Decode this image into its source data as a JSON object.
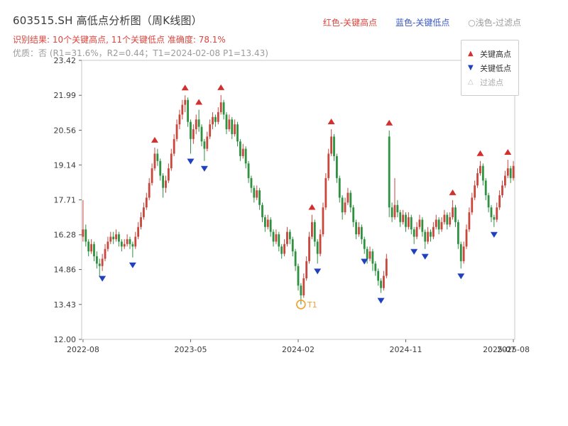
{
  "header": {
    "title": "603515.SH 高低点分析图（周K线图）",
    "result_line": "识别结果: 10个关键高点, 11个关键低点  准确度: 78.1%",
    "quality_line": "优质：否 (R1=31.6%，R2=0.44；T1=2024-02-08 P1=13.43)",
    "inline_legend": {
      "items": [
        {
          "label": "红色-关键高点",
          "color": "#d9453d"
        },
        {
          "label": "蓝色-关键低点",
          "color": "#3a57c4"
        },
        {
          "label": "○浅色-过滤点",
          "color": "#9b9b9b"
        }
      ]
    }
  },
  "legend_box": {
    "items": [
      {
        "glyph": "▲",
        "label": "关键高点",
        "color": "#d32f2f",
        "label_color": "#333333"
      },
      {
        "glyph": "▼",
        "label": "关键低点",
        "color": "#2040c0",
        "label_color": "#333333"
      },
      {
        "glyph": "△",
        "label": "过滤点",
        "color": "#bbbbbb",
        "label_color": "#aaaaaa"
      }
    ]
  },
  "colors": {
    "accent_red": "#d9453d",
    "accent_blue": "#3a57c4",
    "muted": "#9b9b9b",
    "title_text": "#3b3b3b",
    "tick_text": "#3c3c3c",
    "frame": "#c9c9c9",
    "up": "#c9463c",
    "down": "#2e9140",
    "high_marker": "#d32f2f",
    "low_marker": "#2040c0",
    "t1": "#f0a029"
  },
  "chart_data": {
    "type": "candlestick",
    "symbol": "603515.SH",
    "period": "weekly",
    "title": "603515.SH 高低点分析图（周K线图）",
    "grid": false,
    "legend_position": "upper right",
    "ylim": [
      12.0,
      23.42
    ],
    "y_ticks": [
      12.0,
      13.43,
      14.86,
      16.28,
      17.71,
      19.14,
      20.56,
      21.99,
      23.42
    ],
    "x_tick_labels": [
      "2022-08",
      "2023-05",
      "2024-02",
      "2024-11",
      "2025-08"
    ],
    "x_tick_weeks": [
      0,
      39,
      78,
      117,
      156
    ],
    "overlap_x_label": "2025-07",
    "stats": {
      "num_key_highs": 10,
      "num_key_lows": 11,
      "accuracy": "78.1%",
      "quality": "否",
      "R1": "31.6%",
      "R2": "0.44",
      "T1_date": "2024-02-08",
      "P1": "13.43"
    },
    "key_highs": [
      26,
      37,
      42,
      50,
      83,
      90,
      111,
      134,
      144,
      154
    ],
    "key_lows": [
      7,
      18,
      39,
      44,
      85,
      102,
      108,
      120,
      124,
      137,
      149
    ],
    "t1": {
      "index": 79,
      "label": "T1",
      "price": 13.43,
      "date": "2024-02-08"
    },
    "candles": [
      [
        16.2,
        17.7,
        16.0,
        16.5
      ],
      [
        16.5,
        16.7,
        15.8,
        16.0
      ],
      [
        16.0,
        16.1,
        15.4,
        15.6
      ],
      [
        15.6,
        16.1,
        15.5,
        15.9
      ],
      [
        15.9,
        16.0,
        15.2,
        15.4
      ],
      [
        15.4,
        15.6,
        14.9,
        15.1
      ],
      [
        15.1,
        15.3,
        14.55,
        15.0
      ],
      [
        15.0,
        15.5,
        14.8,
        15.3
      ],
      [
        15.3,
        15.9,
        15.2,
        15.7
      ],
      [
        15.7,
        16.2,
        15.6,
        16.0
      ],
      [
        16.0,
        16.4,
        15.9,
        16.2
      ],
      [
        16.2,
        16.4,
        15.9,
        16.1
      ],
      [
        16.1,
        16.5,
        16.0,
        16.3
      ],
      [
        16.3,
        16.4,
        15.8,
        16.0
      ],
      [
        16.0,
        16.1,
        15.6,
        15.8
      ],
      [
        15.8,
        16.1,
        15.7,
        15.9
      ],
      [
        15.9,
        16.3,
        15.8,
        16.1
      ],
      [
        16.1,
        16.2,
        15.7,
        15.9
      ],
      [
        15.9,
        16.0,
        15.35,
        15.8
      ],
      [
        15.8,
        16.4,
        15.7,
        16.2
      ],
      [
        16.2,
        16.8,
        16.1,
        16.6
      ],
      [
        16.6,
        17.2,
        16.5,
        17.0
      ],
      [
        17.0,
        17.6,
        16.9,
        17.4
      ],
      [
        17.4,
        18.0,
        17.3,
        17.8
      ],
      [
        17.8,
        18.6,
        17.7,
        18.4
      ],
      [
        18.4,
        19.2,
        18.3,
        19.0
      ],
      [
        19.0,
        19.85,
        18.9,
        19.6
      ],
      [
        19.6,
        19.8,
        19.1,
        19.3
      ],
      [
        19.3,
        19.4,
        18.5,
        18.7
      ],
      [
        18.7,
        18.8,
        17.8,
        18.2
      ],
      [
        18.2,
        18.7,
        18.0,
        18.5
      ],
      [
        18.5,
        19.2,
        18.4,
        19.0
      ],
      [
        19.0,
        19.8,
        18.9,
        19.6
      ],
      [
        19.6,
        20.4,
        19.5,
        20.2
      ],
      [
        20.2,
        21.0,
        20.1,
        20.8
      ],
      [
        20.8,
        21.4,
        20.6,
        21.2
      ],
      [
        21.2,
        21.8,
        21.0,
        21.6
      ],
      [
        21.6,
        21.99,
        21.3,
        21.8
      ],
      [
        21.8,
        21.9,
        20.7,
        20.9
      ],
      [
        20.9,
        21.0,
        19.6,
        20.2
      ],
      [
        20.2,
        20.8,
        20.0,
        20.6
      ],
      [
        20.6,
        21.2,
        20.4,
        21.0
      ],
      [
        21.0,
        21.4,
        20.5,
        20.7
      ],
      [
        20.7,
        20.8,
        19.9,
        20.1
      ],
      [
        20.1,
        20.2,
        19.3,
        19.8
      ],
      [
        19.8,
        20.5,
        19.7,
        20.3
      ],
      [
        20.3,
        21.0,
        20.2,
        20.8
      ],
      [
        20.8,
        21.3,
        20.6,
        21.1
      ],
      [
        21.1,
        21.2,
        20.7,
        20.9
      ],
      [
        20.9,
        21.5,
        20.8,
        21.3
      ],
      [
        21.3,
        22.0,
        21.2,
        21.7
      ],
      [
        21.7,
        21.8,
        21.0,
        21.2
      ],
      [
        21.2,
        21.3,
        20.4,
        20.6
      ],
      [
        20.6,
        21.2,
        20.5,
        21.0
      ],
      [
        21.0,
        21.1,
        20.2,
        20.4
      ],
      [
        20.4,
        21.0,
        20.3,
        20.8
      ],
      [
        20.8,
        20.9,
        19.9,
        20.1
      ],
      [
        20.1,
        20.2,
        19.3,
        19.5
      ],
      [
        19.5,
        20.0,
        19.4,
        19.8
      ],
      [
        19.8,
        19.9,
        19.0,
        19.2
      ],
      [
        19.2,
        19.3,
        18.4,
        18.6
      ],
      [
        18.6,
        18.7,
        18.0,
        18.2
      ],
      [
        18.2,
        18.3,
        17.6,
        17.8
      ],
      [
        17.8,
        18.3,
        17.7,
        18.1
      ],
      [
        18.1,
        18.2,
        17.3,
        17.5
      ],
      [
        17.5,
        17.6,
        16.8,
        17.0
      ],
      [
        17.0,
        17.1,
        16.4,
        16.6
      ],
      [
        16.6,
        17.1,
        16.5,
        16.9
      ],
      [
        16.9,
        17.0,
        16.2,
        16.4
      ],
      [
        16.4,
        16.5,
        15.8,
        16.0
      ],
      [
        16.0,
        16.5,
        15.9,
        16.3
      ],
      [
        16.3,
        16.4,
        15.6,
        15.8
      ],
      [
        15.8,
        15.9,
        15.3,
        15.5
      ],
      [
        15.5,
        16.1,
        15.4,
        15.9
      ],
      [
        15.9,
        16.6,
        15.8,
        16.4
      ],
      [
        16.4,
        16.5,
        15.9,
        16.1
      ],
      [
        16.1,
        16.2,
        15.4,
        15.6
      ],
      [
        15.6,
        15.7,
        14.8,
        15.0
      ],
      [
        15.0,
        15.1,
        14.0,
        14.2
      ],
      [
        14.2,
        14.3,
        13.43,
        13.8
      ],
      [
        13.8,
        14.7,
        13.7,
        14.5
      ],
      [
        14.5,
        15.4,
        14.4,
        15.2
      ],
      [
        15.2,
        16.4,
        15.1,
        16.2
      ],
      [
        16.2,
        17.1,
        16.1,
        16.8
      ],
      [
        16.8,
        16.9,
        15.8,
        16.0
      ],
      [
        16.0,
        16.1,
        15.1,
        15.5
      ],
      [
        15.5,
        16.5,
        15.4,
        16.3
      ],
      [
        16.3,
        17.6,
        16.2,
        17.4
      ],
      [
        17.4,
        18.8,
        17.3,
        18.6
      ],
      [
        18.6,
        19.8,
        18.5,
        19.6
      ],
      [
        19.6,
        20.6,
        19.5,
        20.3
      ],
      [
        20.3,
        20.4,
        19.3,
        19.5
      ],
      [
        19.5,
        19.6,
        18.4,
        18.6
      ],
      [
        18.6,
        18.7,
        17.6,
        17.8
      ],
      [
        17.8,
        17.9,
        16.9,
        17.2
      ],
      [
        17.2,
        17.8,
        17.1,
        17.6
      ],
      [
        17.6,
        18.2,
        17.5,
        18.0
      ],
      [
        18.0,
        18.1,
        17.2,
        17.4
      ],
      [
        17.4,
        17.5,
        16.6,
        16.8
      ],
      [
        16.8,
        16.9,
        16.1,
        16.3
      ],
      [
        16.3,
        16.8,
        16.2,
        16.6
      ],
      [
        16.6,
        16.7,
        15.9,
        16.1
      ],
      [
        16.1,
        16.2,
        15.5,
        15.7
      ],
      [
        15.7,
        15.8,
        15.1,
        15.3
      ],
      [
        15.3,
        15.8,
        15.2,
        15.6
      ],
      [
        15.6,
        15.7,
        14.8,
        15.1
      ],
      [
        15.1,
        15.2,
        14.6,
        14.8
      ],
      [
        14.8,
        14.9,
        14.2,
        14.4
      ],
      [
        14.4,
        14.5,
        13.9,
        14.1
      ],
      [
        14.1,
        14.8,
        14.0,
        14.6
      ],
      [
        14.6,
        15.5,
        14.5,
        15.3
      ],
      [
        20.3,
        20.55,
        17.0,
        17.4
      ],
      [
        17.4,
        17.6,
        16.8,
        17.0
      ],
      [
        17.0,
        18.6,
        16.9,
        17.5
      ],
      [
        17.5,
        17.7,
        17.0,
        17.2
      ],
      [
        17.2,
        17.3,
        16.6,
        16.8
      ],
      [
        16.8,
        17.3,
        16.7,
        17.1
      ],
      [
        17.1,
        17.2,
        16.4,
        16.6
      ],
      [
        16.6,
        17.2,
        16.5,
        17.0
      ],
      [
        17.0,
        17.1,
        16.3,
        16.5
      ],
      [
        16.5,
        16.6,
        15.9,
        16.2
      ],
      [
        16.2,
        16.8,
        16.1,
        16.6
      ],
      [
        16.6,
        17.1,
        16.5,
        16.9
      ],
      [
        16.9,
        17.0,
        16.2,
        16.4
      ],
      [
        16.4,
        16.5,
        15.7,
        16.0
      ],
      [
        16.0,
        16.6,
        15.9,
        16.4
      ],
      [
        16.4,
        16.5,
        16.0,
        16.2
      ],
      [
        16.2,
        16.8,
        16.1,
        16.6
      ],
      [
        16.6,
        17.1,
        16.5,
        16.9
      ],
      [
        16.9,
        17.0,
        16.3,
        16.5
      ],
      [
        16.5,
        17.0,
        16.4,
        16.8
      ],
      [
        16.8,
        17.3,
        16.7,
        17.1
      ],
      [
        17.1,
        17.2,
        16.5,
        16.7
      ],
      [
        16.7,
        17.2,
        16.6,
        17.0
      ],
      [
        17.0,
        17.7,
        16.9,
        17.4
      ],
      [
        17.4,
        17.5,
        16.6,
        16.8
      ],
      [
        16.8,
        16.9,
        15.7,
        15.9
      ],
      [
        15.9,
        16.0,
        14.9,
        15.2
      ],
      [
        15.2,
        16.0,
        15.1,
        15.8
      ],
      [
        15.8,
        16.7,
        15.7,
        16.5
      ],
      [
        16.5,
        17.4,
        16.4,
        17.2
      ],
      [
        17.2,
        18.0,
        17.1,
        17.8
      ],
      [
        17.8,
        18.5,
        17.7,
        18.3
      ],
      [
        18.3,
        19.0,
        18.2,
        18.8
      ],
      [
        18.8,
        19.3,
        18.7,
        19.1
      ],
      [
        19.1,
        19.2,
        18.3,
        18.5
      ],
      [
        18.5,
        18.6,
        17.7,
        17.9
      ],
      [
        17.9,
        18.0,
        17.2,
        17.4
      ],
      [
        17.4,
        17.5,
        16.8,
        17.0
      ],
      [
        17.0,
        17.1,
        16.6,
        16.9
      ],
      [
        16.9,
        17.6,
        16.8,
        17.4
      ],
      [
        17.4,
        18.1,
        17.3,
        17.9
      ],
      [
        17.9,
        18.5,
        17.8,
        18.3
      ],
      [
        18.3,
        18.9,
        18.2,
        18.7
      ],
      [
        18.7,
        19.35,
        18.6,
        19.0
      ],
      [
        19.0,
        19.1,
        18.4,
        18.6
      ],
      [
        18.6,
        19.3,
        18.5,
        19.1
      ]
    ]
  }
}
